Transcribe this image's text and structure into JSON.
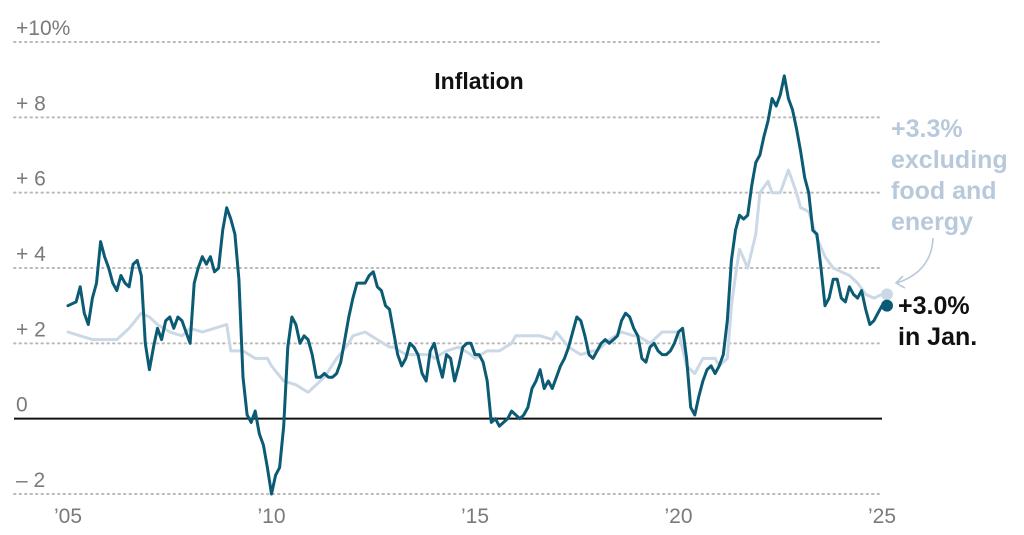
{
  "chart_data": {
    "type": "line",
    "title": "Inflation",
    "xlabel": "",
    "ylabel": "",
    "xlim": [
      2005,
      2025
    ],
    "ylim": [
      -2,
      10
    ],
    "y_ticks": [
      {
        "value": 10,
        "label": "+10%"
      },
      {
        "value": 8,
        "label": "+ 8"
      },
      {
        "value": 6,
        "label": "+ 6"
      },
      {
        "value": 4,
        "label": "+ 4"
      },
      {
        "value": 2,
        "label": "+ 2"
      },
      {
        "value": 0,
        "label": "0"
      },
      {
        "value": -2,
        "label": "– 2"
      }
    ],
    "x_ticks": [
      {
        "value": 2005,
        "label": "’05"
      },
      {
        "value": 2010,
        "label": "’10"
      },
      {
        "value": 2015,
        "label": "’15"
      },
      {
        "value": 2020,
        "label": "’20"
      },
      {
        "value": 2025,
        "label": "’25"
      }
    ],
    "grid": "horizontal-dotted",
    "colors": {
      "headline": "#0b5b74",
      "core": "#cbd8e6",
      "grid": "#bbbbbb",
      "zero_line": "#111111",
      "annotation_core": "#b8c9dc"
    },
    "series": [
      {
        "role": "headline",
        "points": [
          [
            2005.0,
            3.0
          ],
          [
            2005.2,
            3.1
          ],
          [
            2005.3,
            3.5
          ],
          [
            2005.4,
            2.8
          ],
          [
            2005.5,
            2.5
          ],
          [
            2005.6,
            3.2
          ],
          [
            2005.7,
            3.6
          ],
          [
            2005.8,
            4.7
          ],
          [
            2005.9,
            4.3
          ],
          [
            2006.0,
            4.0
          ],
          [
            2006.1,
            3.6
          ],
          [
            2006.2,
            3.4
          ],
          [
            2006.3,
            3.8
          ],
          [
            2006.4,
            3.6
          ],
          [
            2006.5,
            3.5
          ],
          [
            2006.6,
            4.1
          ],
          [
            2006.7,
            4.2
          ],
          [
            2006.8,
            3.8
          ],
          [
            2006.9,
            2.0
          ],
          [
            2007.0,
            1.3
          ],
          [
            2007.1,
            1.9
          ],
          [
            2007.2,
            2.4
          ],
          [
            2007.3,
            2.1
          ],
          [
            2007.4,
            2.6
          ],
          [
            2007.5,
            2.7
          ],
          [
            2007.6,
            2.4
          ],
          [
            2007.7,
            2.7
          ],
          [
            2007.8,
            2.6
          ],
          [
            2007.9,
            2.3
          ],
          [
            2008.0,
            2.0
          ],
          [
            2008.1,
            3.6
          ],
          [
            2008.2,
            4.0
          ],
          [
            2008.3,
            4.3
          ],
          [
            2008.4,
            4.1
          ],
          [
            2008.5,
            4.3
          ],
          [
            2008.6,
            3.9
          ],
          [
            2008.7,
            4.0
          ],
          [
            2008.8,
            5.0
          ],
          [
            2008.9,
            5.6
          ],
          [
            2009.0,
            5.3
          ],
          [
            2009.1,
            4.9
          ],
          [
            2009.2,
            3.7
          ],
          [
            2009.3,
            1.1
          ],
          [
            2009.4,
            0.1
          ],
          [
            2009.5,
            -0.1
          ],
          [
            2009.6,
            0.2
          ],
          [
            2009.7,
            -0.4
          ],
          [
            2009.8,
            -0.7
          ],
          [
            2009.9,
            -1.3
          ],
          [
            2010.0,
            -2.0
          ],
          [
            2010.1,
            -1.5
          ],
          [
            2010.2,
            -1.3
          ],
          [
            2010.3,
            -0.2
          ],
          [
            2010.4,
            1.9
          ],
          [
            2010.5,
            2.7
          ],
          [
            2010.6,
            2.5
          ],
          [
            2010.7,
            2.0
          ],
          [
            2010.8,
            2.2
          ],
          [
            2010.9,
            2.1
          ],
          [
            2011.0,
            1.7
          ],
          [
            2011.1,
            1.1
          ],
          [
            2011.2,
            1.1
          ],
          [
            2011.3,
            1.2
          ],
          [
            2011.4,
            1.1
          ],
          [
            2011.5,
            1.1
          ],
          [
            2011.6,
            1.2
          ],
          [
            2011.7,
            1.5
          ],
          [
            2011.8,
            2.1
          ],
          [
            2011.9,
            2.7
          ],
          [
            2012.0,
            3.2
          ],
          [
            2012.1,
            3.6
          ],
          [
            2012.2,
            3.6
          ],
          [
            2012.3,
            3.6
          ],
          [
            2012.4,
            3.8
          ],
          [
            2012.5,
            3.9
          ],
          [
            2012.6,
            3.5
          ],
          [
            2012.7,
            3.4
          ],
          [
            2012.8,
            3.0
          ],
          [
            2012.9,
            2.9
          ],
          [
            2013.0,
            2.3
          ],
          [
            2013.1,
            1.7
          ],
          [
            2013.2,
            1.4
          ],
          [
            2013.3,
            1.6
          ],
          [
            2013.4,
            2.0
          ],
          [
            2013.5,
            1.9
          ],
          [
            2013.6,
            1.7
          ],
          [
            2013.7,
            1.2
          ],
          [
            2013.8,
            1.0
          ],
          [
            2013.9,
            1.8
          ],
          [
            2014.0,
            2.0
          ],
          [
            2014.1,
            1.5
          ],
          [
            2014.2,
            1.1
          ],
          [
            2014.3,
            1.7
          ],
          [
            2014.4,
            1.6
          ],
          [
            2014.5,
            1.0
          ],
          [
            2014.6,
            1.4
          ],
          [
            2014.7,
            1.9
          ],
          [
            2014.8,
            2.0
          ],
          [
            2014.9,
            2.0
          ],
          [
            2015.0,
            1.7
          ],
          [
            2015.1,
            1.7
          ],
          [
            2015.2,
            1.5
          ],
          [
            2015.3,
            1.0
          ],
          [
            2015.4,
            -0.1
          ],
          [
            2015.5,
            0.0
          ],
          [
            2015.6,
            -0.2
          ],
          [
            2015.7,
            -0.1
          ],
          [
            2015.8,
            0.0
          ],
          [
            2015.9,
            0.2
          ],
          [
            2016.0,
            0.1
          ],
          [
            2016.1,
            0.0
          ],
          [
            2016.2,
            0.1
          ],
          [
            2016.3,
            0.3
          ],
          [
            2016.4,
            0.8
          ],
          [
            2016.5,
            1.0
          ],
          [
            2016.6,
            1.3
          ],
          [
            2016.7,
            0.8
          ],
          [
            2016.8,
            1.0
          ],
          [
            2016.9,
            0.8
          ],
          [
            2017.0,
            1.1
          ],
          [
            2017.1,
            1.4
          ],
          [
            2017.2,
            1.6
          ],
          [
            2017.3,
            1.9
          ],
          [
            2017.4,
            2.3
          ],
          [
            2017.5,
            2.7
          ],
          [
            2017.6,
            2.6
          ],
          [
            2017.7,
            2.2
          ],
          [
            2017.8,
            1.7
          ],
          [
            2017.9,
            1.6
          ],
          [
            2018.0,
            1.8
          ],
          [
            2018.1,
            2.0
          ],
          [
            2018.2,
            2.1
          ],
          [
            2018.3,
            2.0
          ],
          [
            2018.4,
            2.1
          ],
          [
            2018.5,
            2.2
          ],
          [
            2018.6,
            2.6
          ],
          [
            2018.7,
            2.8
          ],
          [
            2018.8,
            2.7
          ],
          [
            2018.9,
            2.4
          ],
          [
            2019.0,
            2.2
          ],
          [
            2019.1,
            1.6
          ],
          [
            2019.2,
            1.5
          ],
          [
            2019.3,
            1.9
          ],
          [
            2019.4,
            2.0
          ],
          [
            2019.5,
            1.8
          ],
          [
            2019.6,
            1.7
          ],
          [
            2019.7,
            1.7
          ],
          [
            2019.8,
            1.8
          ],
          [
            2019.9,
            2.0
          ],
          [
            2020.0,
            2.3
          ],
          [
            2020.1,
            2.4
          ],
          [
            2020.2,
            1.6
          ],
          [
            2020.3,
            0.3
          ],
          [
            2020.4,
            0.1
          ],
          [
            2020.5,
            0.6
          ],
          [
            2020.6,
            1.0
          ],
          [
            2020.7,
            1.3
          ],
          [
            2020.8,
            1.4
          ],
          [
            2020.9,
            1.2
          ],
          [
            2021.0,
            1.4
          ],
          [
            2021.1,
            1.7
          ],
          [
            2021.2,
            2.6
          ],
          [
            2021.3,
            4.2
          ],
          [
            2021.4,
            5.0
          ],
          [
            2021.5,
            5.4
          ],
          [
            2021.6,
            5.3
          ],
          [
            2021.7,
            5.4
          ],
          [
            2021.8,
            6.2
          ],
          [
            2021.9,
            6.8
          ],
          [
            2022.0,
            7.0
          ],
          [
            2022.1,
            7.5
          ],
          [
            2022.2,
            7.9
          ],
          [
            2022.3,
            8.5
          ],
          [
            2022.4,
            8.3
          ],
          [
            2022.5,
            8.6
          ],
          [
            2022.6,
            9.1
          ],
          [
            2022.7,
            8.5
          ],
          [
            2022.8,
            8.2
          ],
          [
            2022.9,
            7.7
          ],
          [
            2023.0,
            7.1
          ],
          [
            2023.1,
            6.4
          ],
          [
            2023.2,
            6.0
          ],
          [
            2023.3,
            5.0
          ],
          [
            2023.4,
            4.9
          ],
          [
            2023.5,
            4.0
          ],
          [
            2023.6,
            3.0
          ],
          [
            2023.7,
            3.2
          ],
          [
            2023.8,
            3.7
          ],
          [
            2023.9,
            3.7
          ],
          [
            2024.0,
            3.2
          ],
          [
            2024.1,
            3.1
          ],
          [
            2024.2,
            3.5
          ],
          [
            2024.3,
            3.3
          ],
          [
            2024.4,
            3.2
          ],
          [
            2024.5,
            3.4
          ],
          [
            2024.6,
            2.9
          ],
          [
            2024.7,
            2.5
          ],
          [
            2024.8,
            2.6
          ],
          [
            2024.9,
            2.8
          ],
          [
            2025.0,
            3.0
          ]
        ]
      },
      {
        "role": "core",
        "points": [
          [
            2005.0,
            2.3
          ],
          [
            2005.3,
            2.2
          ],
          [
            2005.6,
            2.1
          ],
          [
            2005.9,
            2.1
          ],
          [
            2006.2,
            2.1
          ],
          [
            2006.5,
            2.4
          ],
          [
            2006.8,
            2.8
          ],
          [
            2007.0,
            2.7
          ],
          [
            2007.2,
            2.5
          ],
          [
            2007.5,
            2.3
          ],
          [
            2007.8,
            2.2
          ],
          [
            2008.0,
            2.4
          ],
          [
            2008.3,
            2.3
          ],
          [
            2008.6,
            2.4
          ],
          [
            2008.9,
            2.5
          ],
          [
            2009.0,
            1.8
          ],
          [
            2009.3,
            1.8
          ],
          [
            2009.6,
            1.6
          ],
          [
            2009.9,
            1.6
          ],
          [
            2010.0,
            1.4
          ],
          [
            2010.3,
            1.0
          ],
          [
            2010.6,
            0.9
          ],
          [
            2010.9,
            0.7
          ],
          [
            2011.0,
            0.8
          ],
          [
            2011.3,
            1.1
          ],
          [
            2011.6,
            1.6
          ],
          [
            2011.9,
            2.0
          ],
          [
            2012.0,
            2.2
          ],
          [
            2012.3,
            2.3
          ],
          [
            2012.6,
            2.1
          ],
          [
            2012.9,
            1.9
          ],
          [
            2013.0,
            1.9
          ],
          [
            2013.3,
            1.7
          ],
          [
            2013.6,
            1.7
          ],
          [
            2013.9,
            1.7
          ],
          [
            2014.0,
            1.6
          ],
          [
            2014.3,
            1.8
          ],
          [
            2014.6,
            1.9
          ],
          [
            2014.9,
            1.7
          ],
          [
            2015.0,
            1.6
          ],
          [
            2015.3,
            1.8
          ],
          [
            2015.6,
            1.8
          ],
          [
            2015.9,
            2.0
          ],
          [
            2016.0,
            2.2
          ],
          [
            2016.3,
            2.2
          ],
          [
            2016.6,
            2.2
          ],
          [
            2016.9,
            2.1
          ],
          [
            2017.0,
            2.3
          ],
          [
            2017.3,
            1.9
          ],
          [
            2017.6,
            1.7
          ],
          [
            2017.9,
            1.8
          ],
          [
            2018.0,
            1.8
          ],
          [
            2018.3,
            2.1
          ],
          [
            2018.6,
            2.3
          ],
          [
            2018.9,
            2.2
          ],
          [
            2019.0,
            2.2
          ],
          [
            2019.3,
            2.0
          ],
          [
            2019.6,
            2.3
          ],
          [
            2019.9,
            2.3
          ],
          [
            2020.0,
            2.3
          ],
          [
            2020.2,
            1.4
          ],
          [
            2020.4,
            1.2
          ],
          [
            2020.6,
            1.6
          ],
          [
            2020.9,
            1.6
          ],
          [
            2021.0,
            1.4
          ],
          [
            2021.2,
            1.6
          ],
          [
            2021.3,
            3.0
          ],
          [
            2021.4,
            3.8
          ],
          [
            2021.5,
            4.5
          ],
          [
            2021.7,
            4.0
          ],
          [
            2021.9,
            4.9
          ],
          [
            2022.0,
            6.0
          ],
          [
            2022.2,
            6.3
          ],
          [
            2022.3,
            6.0
          ],
          [
            2022.5,
            6.0
          ],
          [
            2022.6,
            6.3
          ],
          [
            2022.7,
            6.6
          ],
          [
            2022.8,
            6.3
          ],
          [
            2022.9,
            6.0
          ],
          [
            2023.0,
            5.6
          ],
          [
            2023.2,
            5.5
          ],
          [
            2023.4,
            4.8
          ],
          [
            2023.6,
            4.3
          ],
          [
            2023.8,
            4.0
          ],
          [
            2024.0,
            3.9
          ],
          [
            2024.2,
            3.8
          ],
          [
            2024.4,
            3.6
          ],
          [
            2024.6,
            3.3
          ],
          [
            2024.8,
            3.2
          ],
          [
            2025.0,
            3.3
          ]
        ]
      }
    ],
    "annotations": {
      "core_lines": [
        "+3.3%",
        "excluding",
        "food and",
        "energy"
      ],
      "headline_lines": [
        "+3.0%",
        "in Jan."
      ]
    }
  }
}
